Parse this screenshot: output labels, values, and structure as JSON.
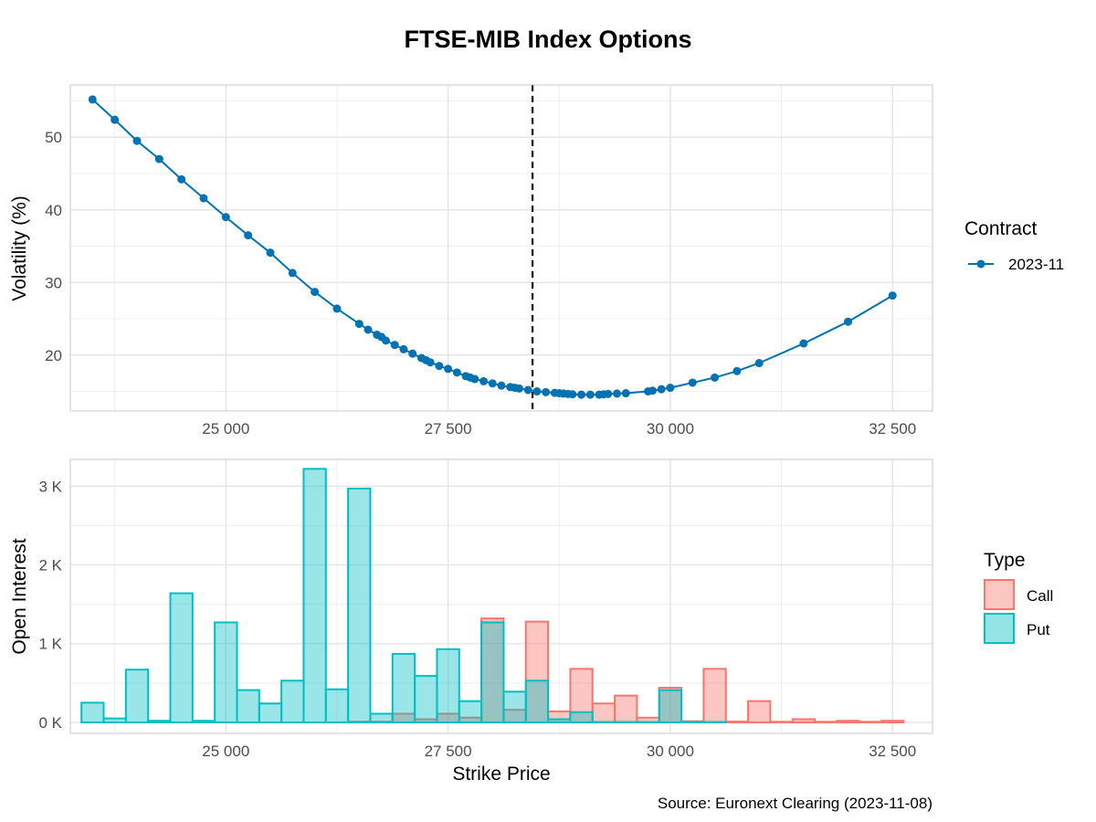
{
  "title": "FTSE-MIB Index Options",
  "source": "Source: Euronext Clearing (2023-11-08)",
  "colors": {
    "line": "#0072B2",
    "call_fill": "#F8766D",
    "put_fill": "#00BFC4",
    "grid": "#EBEBEB",
    "panel_border": "#C8C8C8",
    "vline": "#000000"
  },
  "chart_data": [
    {
      "type": "line",
      "xlabel": "",
      "ylabel": "Volatility (%)",
      "xlim": [
        23250,
        32950
      ],
      "ylim": [
        12.3,
        57.2
      ],
      "x_ticks": [
        25000,
        27500,
        30000,
        32500
      ],
      "x_tick_labels": [
        "25 000",
        "27 500",
        "30 000",
        "32 500"
      ],
      "y_ticks": [
        20,
        30,
        40,
        50
      ],
      "y_tick_labels": [
        "20",
        "30",
        "40",
        "50"
      ],
      "grid": true,
      "reference_line": {
        "x": 28450,
        "style": "dashed"
      },
      "legend": {
        "title": "Contract",
        "position": "right",
        "entries": [
          "2023-11"
        ]
      },
      "series": [
        {
          "name": "2023-11",
          "x": [
            23500,
            23750,
            24000,
            24250,
            24500,
            24750,
            25000,
            25250,
            25500,
            25750,
            26000,
            26250,
            26500,
            26600,
            26700,
            26750,
            26800,
            26900,
            27000,
            27100,
            27200,
            27250,
            27300,
            27400,
            27500,
            27600,
            27700,
            27750,
            27800,
            27900,
            28000,
            28100,
            28200,
            28250,
            28300,
            28400,
            28500,
            28600,
            28700,
            28750,
            28800,
            28850,
            28900,
            29000,
            29100,
            29200,
            29250,
            29300,
            29400,
            29500,
            29750,
            29800,
            29900,
            30000,
            30250,
            30500,
            30750,
            31000,
            31500,
            32000,
            32500
          ],
          "y": [
            55.2,
            52.4,
            49.5,
            47.0,
            44.2,
            41.6,
            39.0,
            36.5,
            34.1,
            31.3,
            28.7,
            26.4,
            24.3,
            23.5,
            22.8,
            22.5,
            22.0,
            21.4,
            20.8,
            20.2,
            19.6,
            19.3,
            19.0,
            18.5,
            18.1,
            17.6,
            17.1,
            16.9,
            16.7,
            16.4,
            16.1,
            15.8,
            15.6,
            15.5,
            15.4,
            15.2,
            15.0,
            14.9,
            14.8,
            14.75,
            14.7,
            14.65,
            14.6,
            14.55,
            14.55,
            14.55,
            14.6,
            14.65,
            14.7,
            14.75,
            15.0,
            15.1,
            15.3,
            15.5,
            16.2,
            16.9,
            17.8,
            18.9,
            21.6,
            24.6,
            28.2
          ]
        }
      ]
    },
    {
      "type": "bar",
      "xlabel": "Strike Price",
      "ylabel": "Open Interest",
      "xlim": [
        23250,
        32950
      ],
      "ylim": [
        -140,
        3340
      ],
      "bar_width": 250,
      "x_ticks": [
        25000,
        27500,
        30000,
        32500
      ],
      "x_tick_labels": [
        "25 000",
        "27 500",
        "30 000",
        "32 500"
      ],
      "y_ticks": [
        0,
        1000,
        2000,
        3000
      ],
      "y_tick_labels": [
        "0 K",
        "1 K",
        "2 K",
        "3 K"
      ],
      "grid": true,
      "legend": {
        "title": "Type",
        "position": "right",
        "entries": [
          "Call",
          "Put"
        ]
      },
      "series": [
        {
          "name": "Call",
          "x": [
            26500,
            26750,
            27000,
            27250,
            27500,
            27750,
            28000,
            28250,
            28500,
            28750,
            29000,
            29250,
            29500,
            29750,
            30000,
            30250,
            30500,
            30750,
            31000,
            31250,
            31500,
            31750,
            32000,
            32250,
            32500
          ],
          "values": [
            10,
            10,
            110,
            40,
            110,
            60,
            1320,
            160,
            1280,
            140,
            680,
            240,
            340,
            60,
            440,
            15,
            680,
            10,
            270,
            8,
            40,
            8,
            20,
            8,
            20
          ]
        },
        {
          "name": "Put",
          "x": [
            23500,
            23750,
            24000,
            24250,
            24500,
            24750,
            25000,
            25250,
            25500,
            25750,
            26000,
            26250,
            26500,
            26750,
            27000,
            27250,
            27500,
            27750,
            28000,
            28250,
            28500,
            28750,
            29000,
            29250,
            29500,
            29750,
            30000,
            30250,
            30500
          ],
          "values": [
            250,
            50,
            670,
            20,
            1640,
            20,
            1270,
            410,
            240,
            530,
            3220,
            420,
            2970,
            110,
            870,
            590,
            930,
            270,
            1270,
            390,
            530,
            40,
            130,
            5,
            5,
            5,
            410,
            5,
            5
          ]
        }
      ]
    }
  ]
}
